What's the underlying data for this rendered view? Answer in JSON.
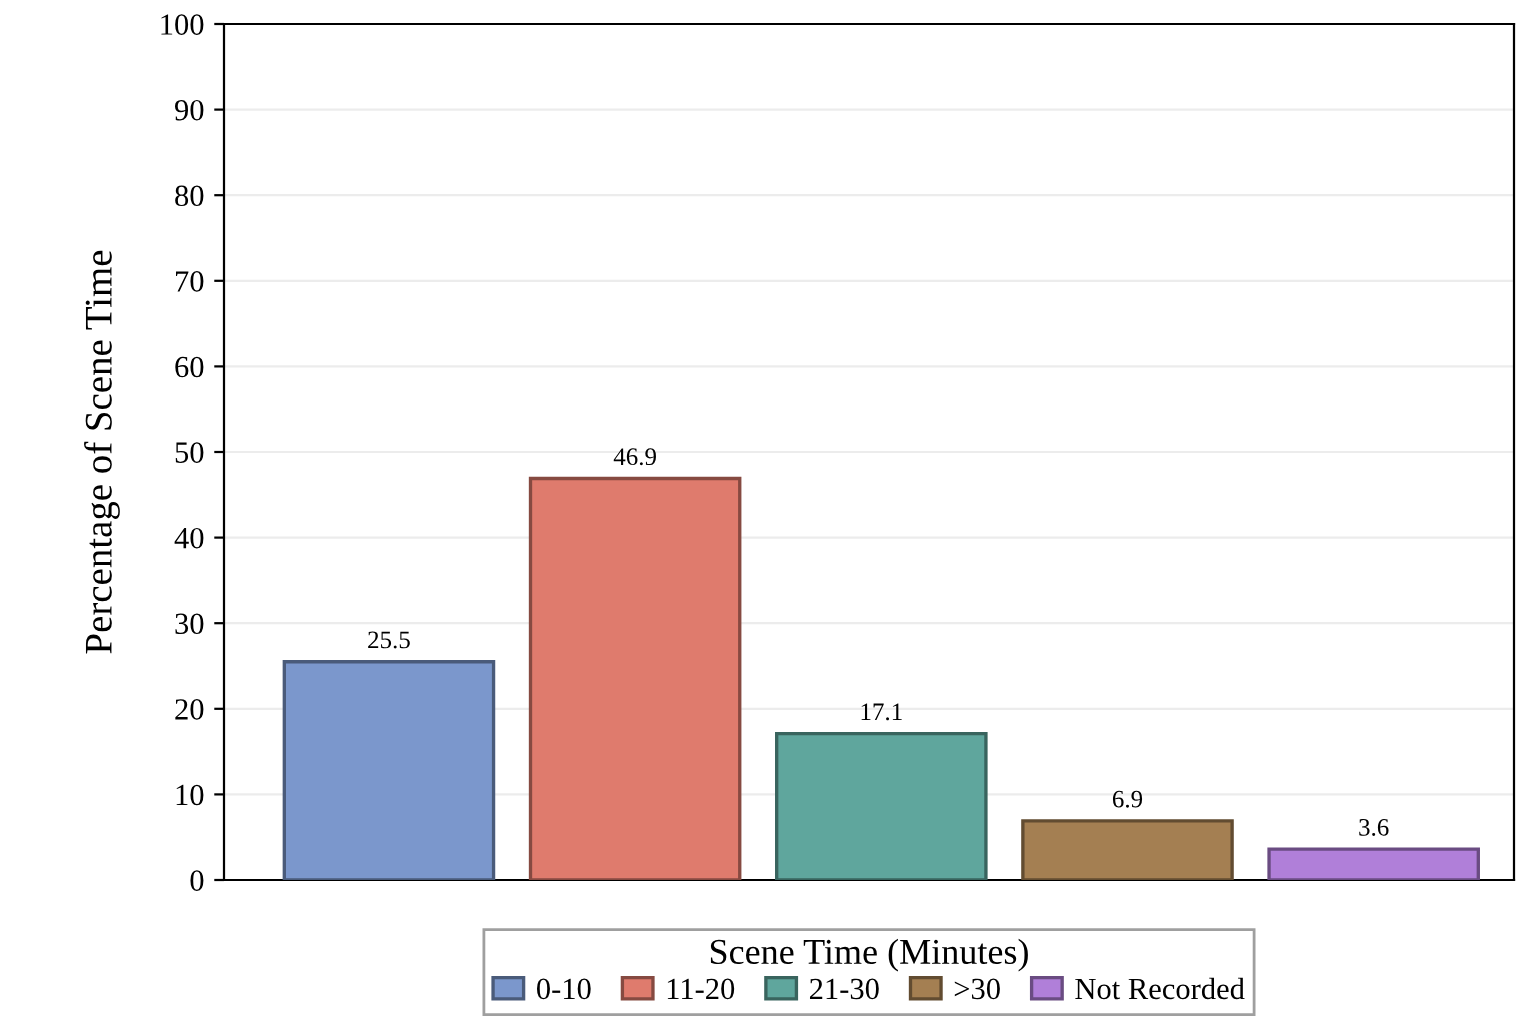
{
  "chart_data": {
    "type": "bar",
    "ylabel": "Percentage of Scene Time",
    "legend_title": "Scene Time (Minutes)",
    "categories": [
      null
    ],
    "series": [
      {
        "name": "0-10",
        "color": "#7b97cc",
        "values": [
          25.5
        ]
      },
      {
        "name": "11-20",
        "color": "#df7b6d",
        "values": [
          46.9
        ]
      },
      {
        "name": "21-30",
        "color": "#5fa69d",
        "values": [
          17.1
        ]
      },
      {
        "name": ">30",
        "color": "#a47f52",
        "values": [
          6.9
        ]
      },
      {
        "name": "Not Recorded",
        "color": "#b07fd9",
        "values": [
          3.6
        ]
      }
    ],
    "ylim": [
      0,
      100
    ],
    "yticks": [
      0,
      10,
      20,
      30,
      40,
      50,
      60,
      70,
      80,
      90,
      100
    ],
    "grid": "y",
    "legend": "bottom",
    "tick_labels": "y",
    "data_labels": true
  }
}
